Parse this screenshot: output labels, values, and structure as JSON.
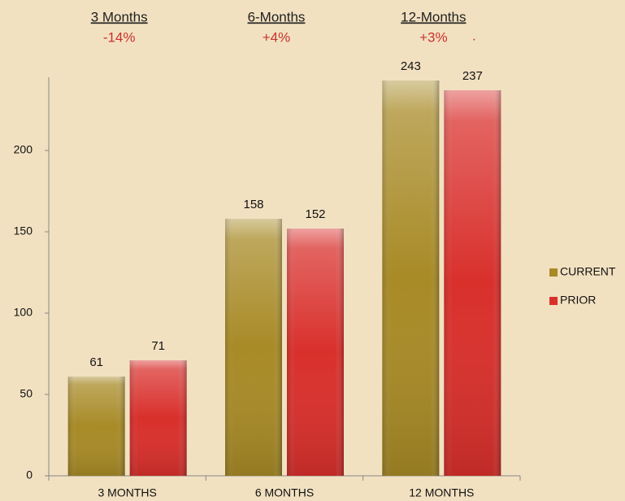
{
  "chart_data": {
    "type": "bar",
    "categories": [
      "3 MONTHS",
      "6 MONTHS",
      "12 MONTHS"
    ],
    "series": [
      {
        "name": "CURRENT",
        "color": "#a88a26",
        "values": [
          61,
          158,
          243
        ]
      },
      {
        "name": "PRIOR",
        "color": "#d9302c",
        "values": [
          71,
          152,
          237
        ]
      }
    ],
    "ylim": [
      0,
      245
    ],
    "yticks": [
      0,
      50,
      100,
      150,
      200
    ],
    "legend": "right",
    "annotations": [
      {
        "title": "3 Months",
        "change": "-14%"
      },
      {
        "title": "6-Months",
        "change": "+4%"
      },
      {
        "title": "12-Months",
        "change": "+3%",
        "mark": "."
      }
    ]
  }
}
